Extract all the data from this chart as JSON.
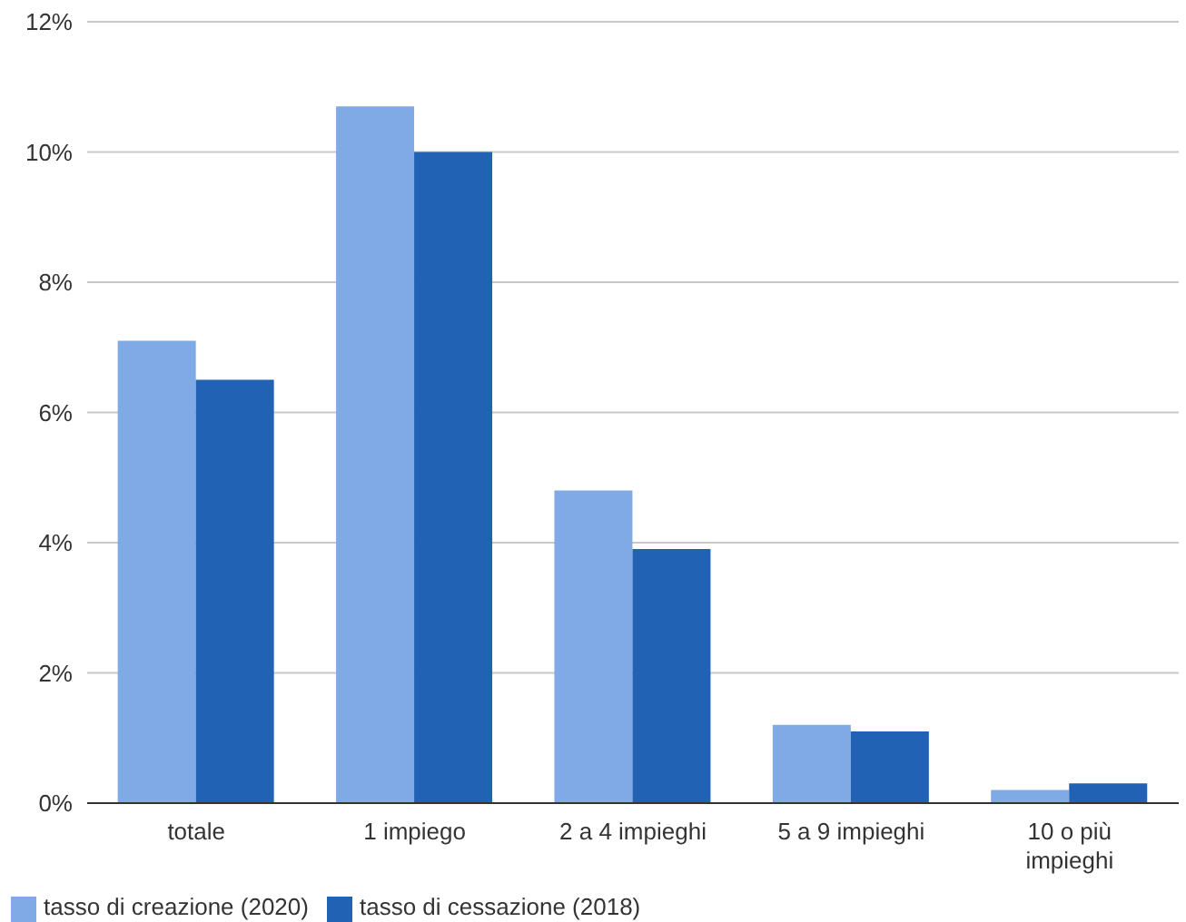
{
  "chart_data": {
    "type": "bar",
    "categories": [
      "totale",
      "1 impiego",
      "2 a 4 impieghi",
      "5 a 9 impieghi",
      "10 o più impieghi"
    ],
    "series": [
      {
        "name": "tasso di creazione (2020)",
        "color": "#7faae6",
        "values": [
          7.1,
          10.7,
          4.8,
          1.2,
          0.2
        ]
      },
      {
        "name": "tasso di cessazione (2018)",
        "color": "#2262b4",
        "values": [
          6.5,
          10.0,
          3.9,
          1.1,
          0.3
        ]
      }
    ],
    "ylim": [
      0,
      12
    ],
    "yticks": [
      {
        "value": 0,
        "label": "0%"
      },
      {
        "value": 2,
        "label": "2%"
      },
      {
        "value": 4,
        "label": "4%"
      },
      {
        "value": 6,
        "label": "6%"
      },
      {
        "value": 8,
        "label": "8%"
      },
      {
        "value": 10,
        "label": "10%"
      },
      {
        "value": 12,
        "label": "12%"
      }
    ],
    "grid": "y",
    "legend": "bottom left"
  }
}
